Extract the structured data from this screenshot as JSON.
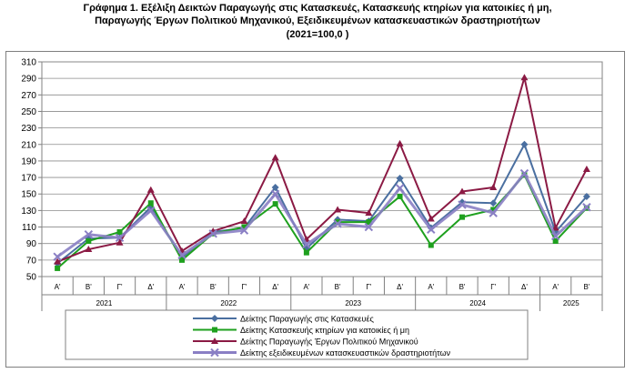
{
  "title": {
    "line1": "Γράφημα 1. Εξέλιξη  Δεικτών Παραγωγής στις Κατασκευές,  Κατασκευής κτηρίων για κατοικίες ή  μη,",
    "line2": "Παραγωγής  Έργων Πολιτικού Μηχανικού,  Εξειδικευμένων κατασκευαστικών δραστηριοτήτων",
    "line3": "(2021=100,0 )"
  },
  "chart_data": {
    "type": "line",
    "quarters": [
      "Α'",
      "Β'",
      "Γ'",
      "Δ'",
      "Α'",
      "Β'",
      "Γ'",
      "Δ'",
      "Α'",
      "Β'",
      "Γ'",
      "Δ'",
      "Α'",
      "Β'",
      "Γ'",
      "Δ'",
      "Α'",
      "Β'"
    ],
    "years": [
      {
        "label": "2021",
        "quarters": 4
      },
      {
        "label": "2022",
        "quarters": 4
      },
      {
        "label": "2023",
        "quarters": 4
      },
      {
        "label": "2024",
        "quarters": 4
      },
      {
        "label": "2025",
        "quarters": 2
      }
    ],
    "ylim": [
      50,
      310
    ],
    "yticks": [
      50,
      70,
      90,
      110,
      130,
      150,
      170,
      190,
      210,
      230,
      250,
      270,
      290,
      310
    ],
    "grid": true,
    "legend_position": "bottom",
    "series": [
      {
        "name": "Δείκτης Παραγωγής στις Κατασκευές",
        "color": "#4a6fa0",
        "marker": "diamond",
        "values": [
          66,
          96,
          97,
          134,
          73,
          104,
          109,
          158,
          84,
          119,
          117,
          169,
          109,
          140,
          139,
          210,
          104,
          147
        ]
      },
      {
        "name": "Δείκτης Κατασκευής κτηρίων για κατοικίες ή μη",
        "color": "#1ea01e",
        "marker": "square",
        "values": [
          60,
          93,
          104,
          139,
          70,
          102,
          110,
          138,
          79,
          116,
          116,
          147,
          88,
          122,
          131,
          173,
          93,
          133
        ]
      },
      {
        "name": "Δείκτης Παραγωγής Έργων Πολιτικού Μηχανικού",
        "color": "#8b1a44",
        "marker": "triangle",
        "values": [
          68,
          83,
          91,
          155,
          81,
          105,
          117,
          194,
          95,
          131,
          127,
          211,
          120,
          153,
          158,
          291,
          109,
          180
        ]
      },
      {
        "name": "Δείκτης εξειδικευμένων κατασκευαστικών δραστηριοτήτων",
        "color": "#8a7fc4",
        "marker": "x",
        "values": [
          74,
          101,
          97,
          130,
          76,
          102,
          106,
          150,
          89,
          114,
          110,
          157,
          107,
          137,
          127,
          175,
          99,
          134
        ]
      }
    ]
  }
}
